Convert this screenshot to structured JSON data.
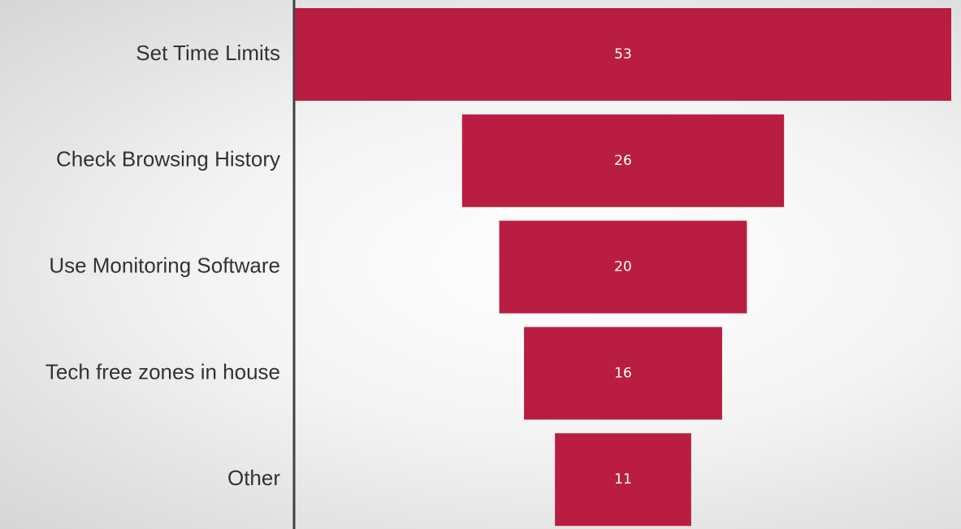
{
  "chart_data": {
    "type": "funnel",
    "categories": [
      "Set Time Limits",
      "Check Browsing History",
      "Use Monitoring Software",
      "Tech free zones in house",
      "Other"
    ],
    "values": [
      53,
      26,
      20,
      16,
      11
    ],
    "color": "#b91e42"
  }
}
